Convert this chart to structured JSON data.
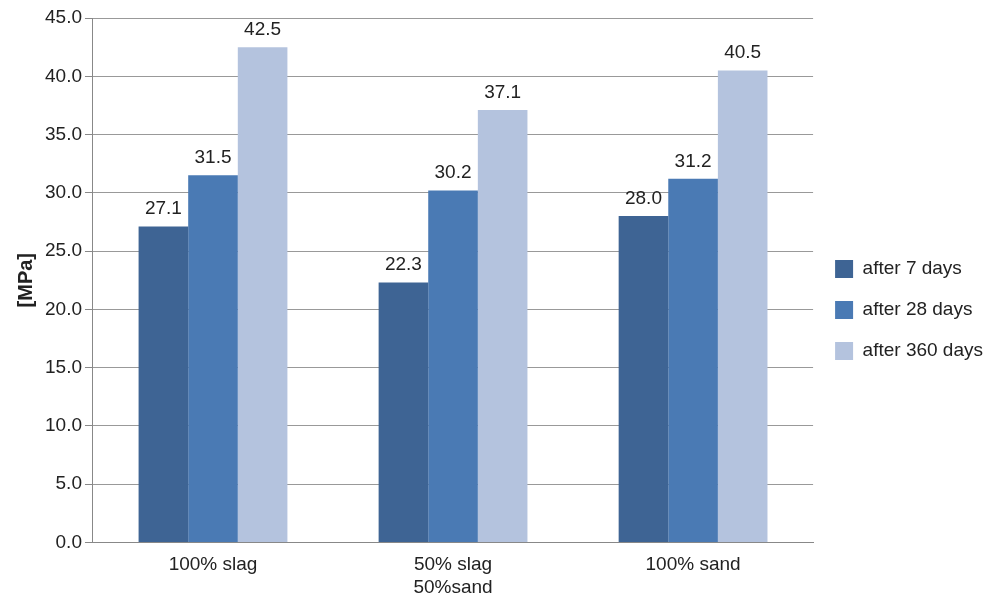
{
  "chart_data": {
    "type": "bar",
    "ylabel": "[MPa]",
    "categories": [
      "100% slag",
      "50% slag\n50%sand",
      "100% sand"
    ],
    "series": [
      {
        "name": "after 7 days",
        "color": "#3e6494",
        "values": [
          27.1,
          22.3,
          28.0
        ],
        "value_labels": [
          "27.1",
          "22.3",
          "28.0"
        ]
      },
      {
        "name": "after 28 days",
        "color": "#4a7ab4",
        "values": [
          31.5,
          30.2,
          31.2
        ],
        "value_labels": [
          "31.5",
          "30.2",
          "31.2"
        ]
      },
      {
        "name": "after 360 days",
        "color": "#b4c3de",
        "values": [
          42.5,
          37.1,
          40.5
        ],
        "value_labels": [
          "42.5",
          "37.1",
          "40.5"
        ]
      }
    ],
    "ylim": [
      0,
      45
    ],
    "yticks": [
      {
        "value": 0,
        "label": "0.0"
      },
      {
        "value": 5,
        "label": "5.0"
      },
      {
        "value": 10,
        "label": "10.0"
      },
      {
        "value": 15,
        "label": "15.0"
      },
      {
        "value": 20,
        "label": "20.0"
      },
      {
        "value": 25,
        "label": "25.0"
      },
      {
        "value": 30,
        "label": "30.0"
      },
      {
        "value": 35,
        "label": "35.0"
      },
      {
        "value": 40,
        "label": "40.0"
      },
      {
        "value": 45,
        "label": "45.0"
      }
    ],
    "grid": "y",
    "legend": "right"
  }
}
